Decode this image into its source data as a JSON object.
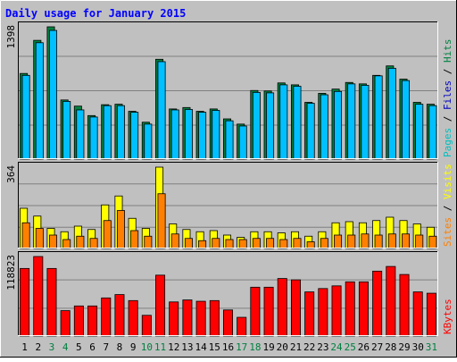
{
  "chart_data": {
    "type": "bar",
    "title": "Daily usage for January 2015",
    "days": [
      "1",
      "2",
      "3",
      "4",
      "5",
      "6",
      "7",
      "8",
      "9",
      "10",
      "11",
      "12",
      "13",
      "14",
      "15",
      "16",
      "17",
      "18",
      "19",
      "20",
      "21",
      "22",
      "23",
      "24",
      "25",
      "26",
      "27",
      "28",
      "29",
      "30",
      "31"
    ],
    "weekend_days": [
      "3",
      "4",
      "10",
      "11",
      "17",
      "18",
      "24",
      "25",
      "31"
    ],
    "panels": [
      {
        "id": "top",
        "max_label": "1398",
        "ylim": [
          0,
          1398
        ],
        "legend": [
          {
            "text": "Pages",
            "color": "#00c0c0"
          },
          {
            "text": " / ",
            "color": "#000000"
          },
          {
            "text": "Files",
            "color": "#0000c0"
          },
          {
            "text": " / ",
            "color": "#000000"
          },
          {
            "text": "Hits",
            "color": "#008040"
          }
        ],
        "series": [
          {
            "name": "Hits",
            "color": "#008040",
            "values": [
              905,
              1255,
              1398,
              625,
              560,
              460,
              575,
              580,
              505,
              390,
              1055,
              530,
              545,
              505,
              530,
              425,
              370,
              725,
              720,
              805,
              785,
              600,
              695,
              740,
              810,
              795,
              885,
              985,
              845,
              600,
              580
            ]
          },
          {
            "name": "Files",
            "color": "#00c0ff",
            "values": [
              885,
              1230,
              1360,
              610,
              520,
              445,
              565,
              565,
              495,
              370,
              1030,
              520,
              525,
              495,
              515,
              405,
              350,
              705,
              700,
              785,
              770,
              590,
              680,
              715,
              795,
              780,
              880,
              960,
              830,
              580,
              565
            ]
          }
        ]
      },
      {
        "id": "mid",
        "max_label": "364",
        "ylim": [
          0,
          364
        ],
        "legend": [
          {
            "text": "Sites",
            "color": "#ff8000"
          },
          {
            "text": " / ",
            "color": "#000000"
          },
          {
            "text": "Visits",
            "color": "#ffff00"
          }
        ],
        "series": [
          {
            "name": "Visits",
            "color": "#ffff00",
            "values": [
              180,
              145,
              90,
              75,
              100,
              85,
              195,
              235,
              135,
              90,
              364,
              110,
              85,
              75,
              80,
              60,
              50,
              75,
              75,
              70,
              75,
              55,
              75,
              115,
              120,
              115,
              125,
              140,
              125,
              110,
              95
            ]
          },
          {
            "name": "Sites",
            "color": "#ff8000",
            "values": [
              115,
              90,
              60,
              40,
              55,
              45,
              125,
              170,
              80,
              55,
              245,
              65,
              45,
              35,
              45,
              40,
              40,
              45,
              45,
              40,
              45,
              30,
              45,
              60,
              60,
              65,
              60,
              65,
              65,
              60,
              55
            ]
          }
        ]
      },
      {
        "id": "bottom",
        "max_label": "118823",
        "ylim": [
          0,
          118823
        ],
        "legend": [
          {
            "text": "KBytes",
            "color": "#ff0000"
          }
        ],
        "series": [
          {
            "name": "KBytes",
            "color": "#ff0000",
            "values": [
              101000,
              118823,
              101000,
              38000,
              45000,
              45000,
              57000,
              62000,
              53000,
              31000,
              91000,
              51000,
              54000,
              52000,
              53000,
              39000,
              28000,
              73000,
              73000,
              86000,
              84000,
              66000,
              71000,
              75000,
              81000,
              81000,
              97000,
              104000,
              92000,
              66000,
              64000
            ]
          }
        ]
      }
    ],
    "colors": {
      "background": "#c0c0c0",
      "plot_background": "#c0c0c0",
      "grid": "#808080",
      "title": "#0000ff",
      "weekday_label": "#000000",
      "weekend_label": "#008040"
    }
  }
}
